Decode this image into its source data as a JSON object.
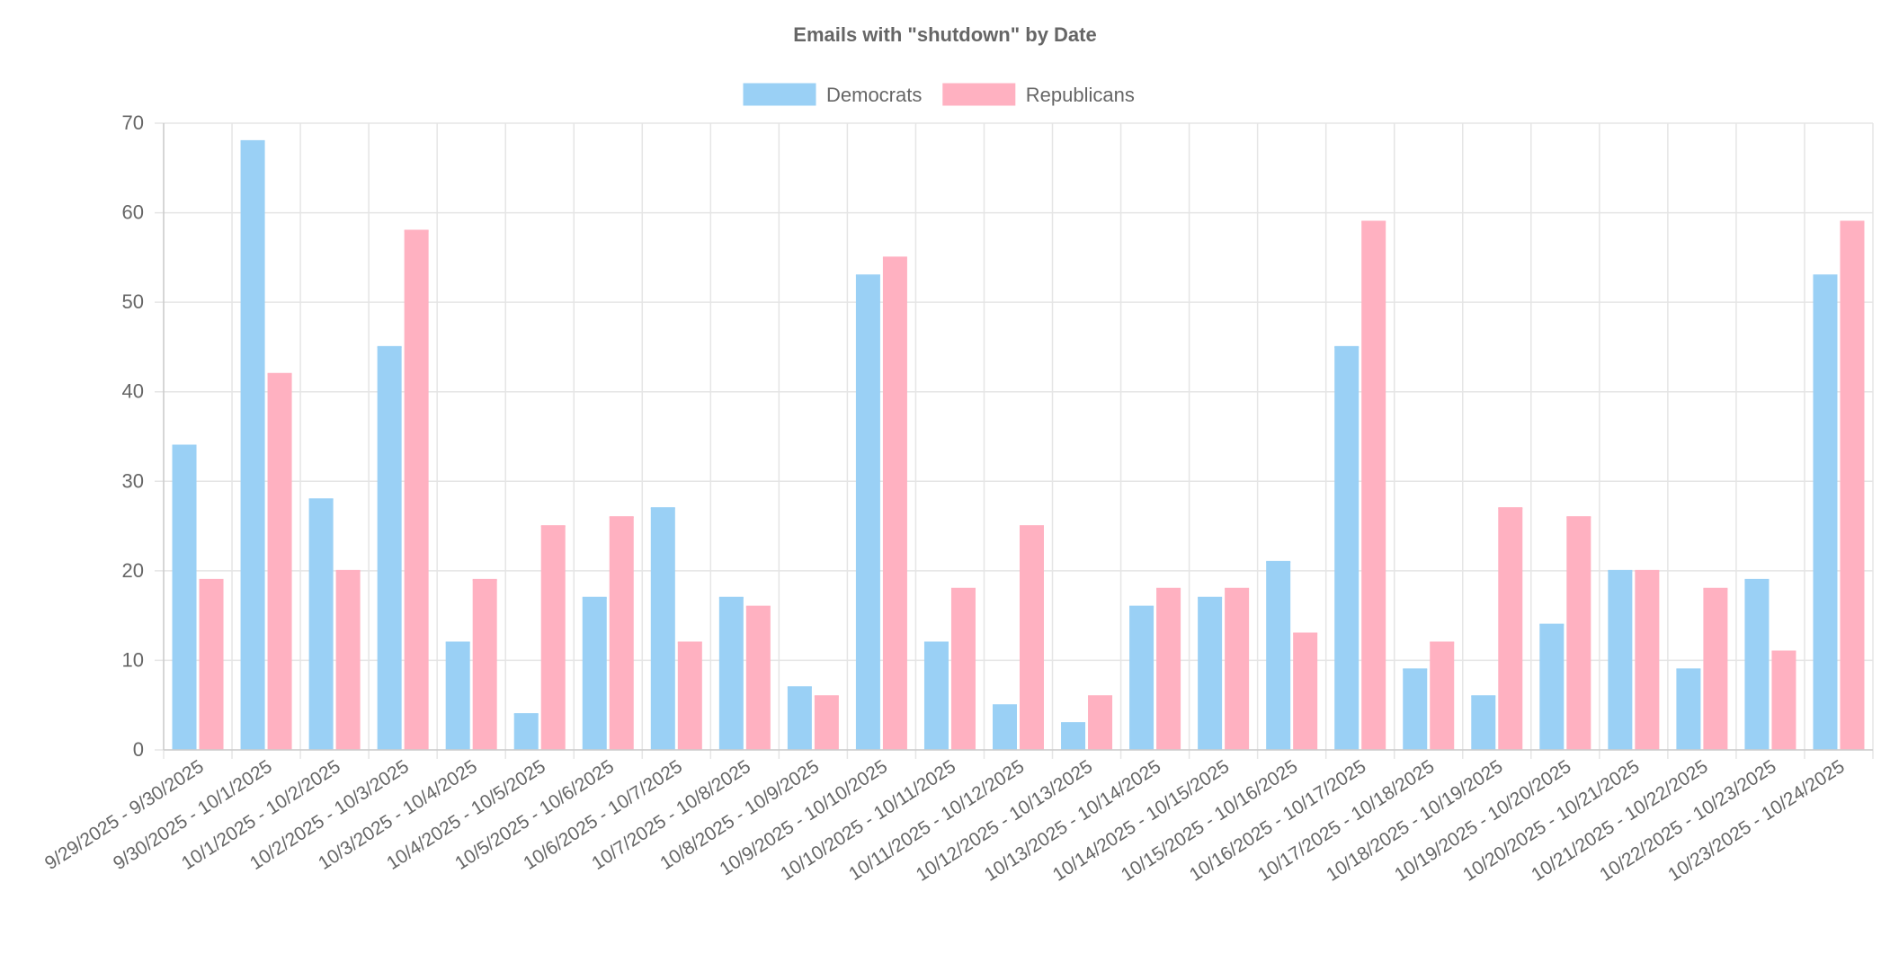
{
  "chart_data": {
    "type": "bar",
    "title": "Emails with \"shutdown\" by Date",
    "xlabel": "",
    "ylabel": "",
    "ylim": [
      0,
      70
    ],
    "yticks": [
      0,
      10,
      20,
      30,
      40,
      50,
      60,
      70
    ],
    "grid": true,
    "legend_position": "top",
    "categories": [
      "9/29/2025 - 9/30/2025",
      "9/30/2025 - 10/1/2025",
      "10/1/2025 - 10/2/2025",
      "10/2/2025 - 10/3/2025",
      "10/3/2025 - 10/4/2025",
      "10/4/2025 - 10/5/2025",
      "10/5/2025 - 10/6/2025",
      "10/6/2025 - 10/7/2025",
      "10/7/2025 - 10/8/2025",
      "10/8/2025 - 10/9/2025",
      "10/9/2025 - 10/10/2025",
      "10/10/2025 - 10/11/2025",
      "10/11/2025 - 10/12/2025",
      "10/12/2025 - 10/13/2025",
      "10/13/2025 - 10/14/2025",
      "10/14/2025 - 10/15/2025",
      "10/15/2025 - 10/16/2025",
      "10/16/2025 - 10/17/2025",
      "10/17/2025 - 10/18/2025",
      "10/18/2025 - 10/19/2025",
      "10/19/2025 - 10/20/2025",
      "10/20/2025 - 10/21/2025",
      "10/21/2025 - 10/22/2025",
      "10/22/2025 - 10/23/2025",
      "10/23/2025 - 10/24/2025"
    ],
    "series": [
      {
        "name": "Democrats",
        "fill": "#9ad0f5",
        "stroke": "#36a2eb",
        "values": [
          34,
          68,
          28,
          45,
          12,
          4,
          17,
          27,
          17,
          7,
          53,
          12,
          5,
          3,
          16,
          17,
          21,
          45,
          9,
          6,
          14,
          20,
          9,
          19,
          53
        ]
      },
      {
        "name": "Republicans",
        "fill": "#ffb1c1",
        "stroke": "#ff6384",
        "values": [
          19,
          42,
          20,
          58,
          19,
          25,
          26,
          12,
          16,
          6,
          55,
          18,
          25,
          6,
          18,
          18,
          13,
          59,
          12,
          27,
          26,
          20,
          18,
          11,
          59
        ]
      }
    ]
  }
}
